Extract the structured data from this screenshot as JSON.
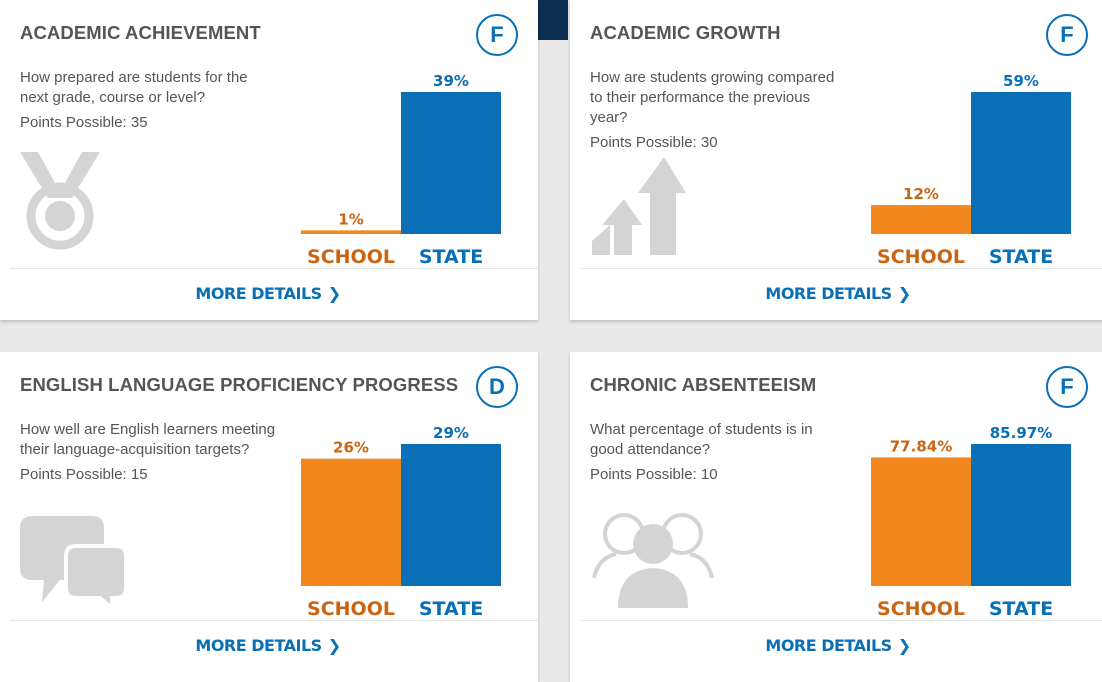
{
  "colors": {
    "school": "#f2871e",
    "state": "#0a6fb5",
    "school_label": "#c96512",
    "state_label": "#0a6fb5",
    "icon": "#d4d4d4"
  },
  "cards": [
    {
      "title": "ACADEMIC ACHIEVEMENT",
      "grade": "F",
      "question": "How prepared are students for the next grade, course or level?",
      "points": "Points Possible: 35",
      "icon": "medal-icon",
      "more": "MORE DETAILS",
      "chart_data": {
        "type": "bar",
        "categories": [
          "SCHOOL",
          "STATE"
        ],
        "values": [
          1,
          39
        ],
        "labels": [
          "1%",
          "39%"
        ],
        "ylim": [
          0,
          39
        ]
      }
    },
    {
      "title": "ACADEMIC GROWTH",
      "grade": "F",
      "question": "How are students growing compared to their performance the previous year?",
      "points": "Points Possible: 30",
      "icon": "growth-arrows-icon",
      "more": "MORE DETAILS",
      "chart_data": {
        "type": "bar",
        "categories": [
          "SCHOOL",
          "STATE"
        ],
        "values": [
          12,
          59
        ],
        "labels": [
          "12%",
          "59%"
        ],
        "ylim": [
          0,
          59
        ]
      }
    },
    {
      "title": "ENGLISH LANGUAGE PROFICIENCY PROGRESS",
      "grade": "D",
      "question": "How well are English learners meeting their language-acquisition targets?",
      "points": "Points Possible: 15",
      "icon": "speech-bubbles-icon",
      "more": "MORE DETAILS",
      "chart_data": {
        "type": "bar",
        "categories": [
          "SCHOOL",
          "STATE"
        ],
        "values": [
          26,
          29
        ],
        "labels": [
          "26%",
          "29%"
        ],
        "ylim": [
          0,
          29
        ]
      }
    },
    {
      "title": "CHRONIC ABSENTEEISM",
      "grade": "F",
      "question": "What percentage of students is in good attendance?",
      "points": "Points Possible: 10",
      "icon": "people-icon",
      "more": "MORE DETAILS",
      "chart_data": {
        "type": "bar",
        "categories": [
          "SCHOOL",
          "STATE"
        ],
        "values": [
          77.84,
          85.97
        ],
        "labels": [
          "77.84%",
          "85.97%"
        ],
        "ylim": [
          0,
          85.97
        ]
      }
    }
  ]
}
